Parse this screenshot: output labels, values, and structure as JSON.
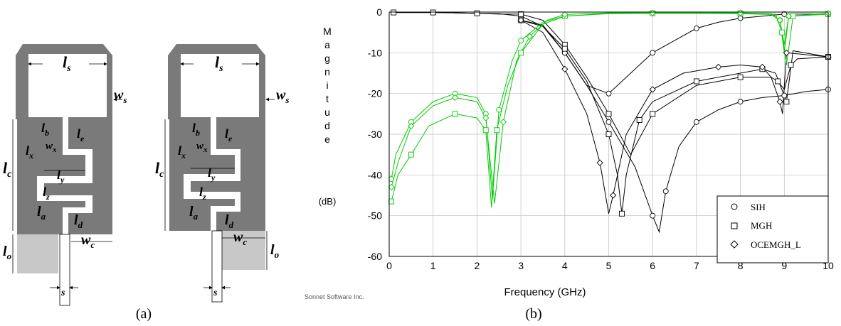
{
  "panel_a": {
    "caption": "(a)",
    "labels": {
      "ls": "l",
      "ls_sub": "s",
      "ws": "w",
      "ws_sub": "s",
      "lb": "l",
      "lb_sub": "b",
      "le": "l",
      "le_sub": "e",
      "wx": "w",
      "wx_sub": "x",
      "lx": "l",
      "lx_sub": "x",
      "lc": "l",
      "lc_sub": "c",
      "ly": "l",
      "ly_sub": "y",
      "lz": "l",
      "lz_sub": "z",
      "la": "l",
      "la_sub": "a",
      "ld": "l",
      "ld_sub": "d",
      "wc": "w",
      "wc_sub": "c",
      "lo": "l",
      "lo_sub": "o",
      "s": "s"
    }
  },
  "panel_b": {
    "caption": "(b)",
    "credit": "Sonnet Software Inc."
  },
  "chart_data": {
    "type": "line",
    "ylabel_letters": [
      "M",
      "a",
      "g",
      "n",
      "i",
      "t",
      "u",
      "d",
      "e"
    ],
    "ylabel_unit": "(dB)",
    "xlabel": "Frequency (GHz)",
    "xlim": [
      0,
      10
    ],
    "ylim": [
      -60,
      0
    ],
    "xticks": [
      0,
      1,
      2,
      3,
      4,
      5,
      6,
      7,
      8,
      9,
      10
    ],
    "yticks": [
      0,
      -10,
      -20,
      -30,
      -40,
      -50,
      -60
    ],
    "grid": true,
    "legend_position": "bottom-right",
    "legend": [
      {
        "marker": "circle",
        "label": "SIH"
      },
      {
        "marker": "square",
        "label": "MGH"
      },
      {
        "marker": "diamond",
        "label": "OCEMGH_L"
      }
    ],
    "series": [
      {
        "color": "#000000",
        "marker": "circle",
        "curve": "S21",
        "x": [
          0.1,
          0.5,
          1,
          1.5,
          2,
          2.5,
          3,
          3.5,
          4,
          4.5,
          5,
          5.5,
          6,
          6.5,
          7,
          7.5,
          8,
          8.5,
          9,
          9.5,
          10
        ],
        "y": [
          -0.1,
          -0.1,
          -0.1,
          -0.2,
          -0.3,
          -0.4,
          -1,
          -3.5,
          -10,
          -18,
          -20,
          -15,
          -10,
          -7,
          -4,
          -2.5,
          -1.5,
          -1,
          -0.5,
          -0.5,
          -0.5
        ]
      },
      {
        "color": "#000000",
        "marker": "circle",
        "curve": "S11",
        "x": [
          3,
          3.5,
          4,
          4.5,
          5,
          5.6,
          6,
          6.15,
          6.3,
          6.6,
          7,
          7.5,
          8,
          8.5,
          9,
          9.5,
          10
        ],
        "y": [
          -2,
          -3.2,
          -10,
          -18,
          -27,
          -38,
          -50,
          -54,
          -44,
          -33,
          -27,
          -24,
          -22,
          -21,
          -20.5,
          -19.5,
          -19
        ]
      },
      {
        "color": "#000000",
        "marker": "square",
        "curve": "S21",
        "x": [
          0.1,
          0.5,
          1,
          1.5,
          2,
          2.5,
          3,
          3.5,
          4,
          4.5,
          5,
          5.5,
          6,
          7,
          8,
          8.7,
          8.85,
          9,
          9.15,
          9.3,
          10
        ],
        "y": [
          -0.1,
          -0.1,
          -0.1,
          -0.2,
          -0.3,
          -0.5,
          -0.5,
          -2,
          -8,
          -16,
          -25,
          -35,
          -25,
          -18,
          -16,
          -16,
          -17,
          -19,
          -13,
          -11.5,
          -11
        ]
      },
      {
        "color": "#000000",
        "marker": "square",
        "curve": "S11",
        "x": [
          3,
          3.5,
          4,
          4.5,
          5,
          5.2,
          5.3,
          5.4,
          5.7,
          6,
          7,
          8,
          8.5,
          8.8,
          9.05,
          9.2,
          10
        ],
        "y": [
          -2,
          -3.5,
          -9,
          -17,
          -30,
          -40,
          -49.5,
          -40,
          -26.5,
          -22,
          -17,
          -15,
          -14,
          -15,
          -22,
          -9.5,
          -11
        ]
      },
      {
        "color": "#000000",
        "marker": "diamond",
        "curve": "S11",
        "x": [
          3,
          3.5,
          4,
          4.5,
          4.8,
          5,
          5.1,
          5.4,
          6,
          6.7,
          7.5,
          8,
          8.5,
          8.7,
          8.9,
          8.96,
          9.05,
          10
        ],
        "y": [
          -2,
          -5,
          -14,
          -25,
          -37,
          -49.5,
          -45,
          -30,
          -19,
          -15,
          -13.5,
          -13,
          -13.5,
          -16,
          -22,
          -25,
          -10,
          -11
        ]
      },
      {
        "color": "#00cc00",
        "marker": "circle",
        "curve": "S11",
        "x": [
          0.05,
          0.15,
          0.5,
          1,
          1.5,
          2,
          2.2,
          2.35,
          2.5,
          2.8,
          3,
          3.5,
          4,
          5,
          6,
          7,
          8,
          8.7,
          8.9,
          9,
          9.1,
          10
        ],
        "y": [
          -41,
          -35,
          -27,
          -22,
          -20,
          -21,
          -25,
          -46,
          -24,
          -12,
          -7,
          -2.5,
          -1,
          -0.4,
          -0.3,
          -0.3,
          -0.4,
          -0.6,
          -2,
          -10,
          -1,
          -0.5
        ]
      },
      {
        "color": "#00cc00",
        "marker": "square",
        "curve": "S11",
        "x": [
          0.05,
          0.2,
          0.5,
          0.9,
          1.5,
          2,
          2.2,
          2.33,
          2.45,
          2.7,
          3,
          3.5,
          4,
          5,
          6,
          7,
          8,
          8.8,
          8.95,
          9.05,
          9.2,
          10
        ],
        "y": [
          -46.5,
          -40,
          -35,
          -28,
          -25,
          -26,
          -29,
          -48,
          -29,
          -18,
          -10,
          -3,
          -1,
          -0.3,
          -0.3,
          -0.3,
          -0.3,
          -0.5,
          -5,
          -13,
          -1,
          -0.5
        ]
      },
      {
        "color": "#00cc00",
        "marker": "diamond",
        "curve": "S11",
        "x": [
          0.05,
          0.2,
          0.5,
          1,
          1.5,
          2,
          2.2,
          2.4,
          2.6,
          2.9,
          3.2,
          3.6,
          4,
          5,
          6,
          7,
          8,
          8.7,
          8.9,
          9.0,
          9.1,
          10
        ],
        "y": [
          -43,
          -37,
          -28,
          -23,
          -21,
          -22,
          -26,
          -47,
          -27,
          -12,
          -6,
          -2,
          -0.6,
          -0.2,
          -0.2,
          -0.2,
          -0.2,
          -0.4,
          -2,
          -8,
          -1,
          -0.3
        ]
      }
    ]
  }
}
